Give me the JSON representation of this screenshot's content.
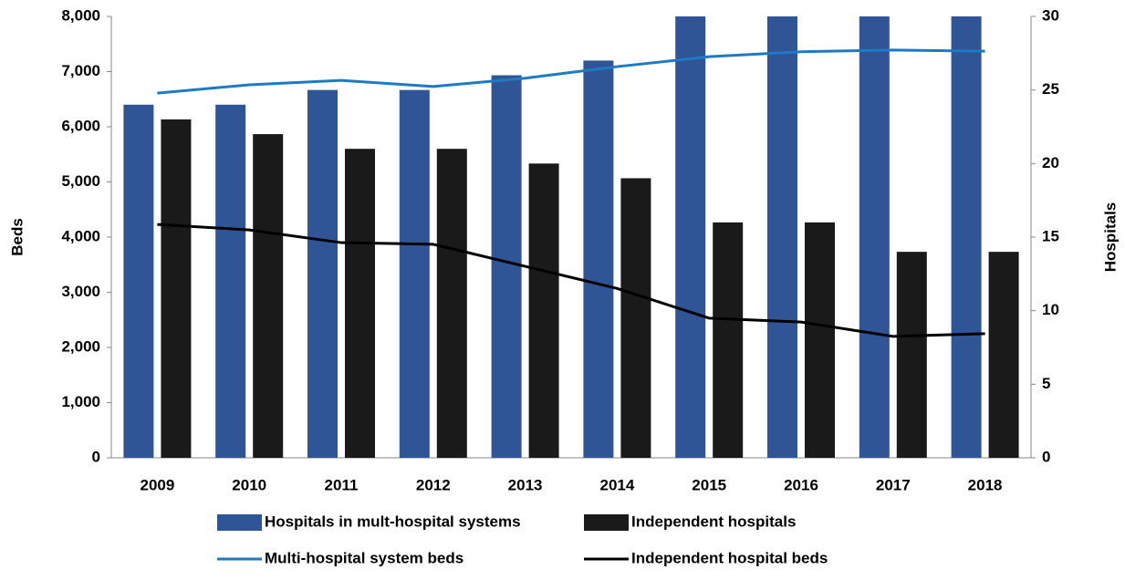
{
  "chart_data": {
    "type": "bar",
    "categories": [
      "2009",
      "2010",
      "2011",
      "2012",
      "2013",
      "2014",
      "2015",
      "2016",
      "2017",
      "2018"
    ],
    "ylabel": "Beds",
    "y2label": "Hospitals",
    "ylim": [
      0,
      8000
    ],
    "yticks": [
      0,
      {
        "value": 1000,
        "label": "1,000"
      },
      {
        "value": 2000,
        "label": "2,000"
      },
      {
        "value": 3000,
        "label": "3,000"
      },
      {
        "value": 4000,
        "label": "4,000"
      },
      {
        "value": 5000,
        "label": "5,000"
      },
      {
        "value": 6000,
        "label": "6,000"
      },
      {
        "value": 7000,
        "label": "7,000"
      },
      {
        "value": 8000,
        "label": "8,000"
      }
    ],
    "y2lim": [
      0,
      30
    ],
    "y2ticks": [
      0,
      5,
      10,
      15,
      20,
      25,
      30
    ],
    "grid": false,
    "series": [
      {
        "name": "Hospitals in mult-hospital systems",
        "type": "bar",
        "axis": "y2",
        "color": "#2f5597",
        "values": [
          24,
          24,
          25,
          25,
          26,
          27,
          30,
          30,
          30,
          30
        ]
      },
      {
        "name": "Independent hospitals",
        "type": "bar",
        "axis": "y2",
        "color": "#1a1a1a",
        "values": [
          23,
          22,
          21,
          21,
          20,
          19,
          16,
          16,
          14,
          14
        ]
      },
      {
        "name": "Multi-hospital system beds",
        "type": "line",
        "color": "#1f7ac4",
        "values": [
          6610,
          6760,
          6840,
          6730,
          6880,
          7090,
          7270,
          7360,
          7390,
          7370
        ]
      },
      {
        "name": "Independent hospital beds",
        "type": "line",
        "color": "#000000",
        "values": [
          4230,
          4130,
          3900,
          3870,
          3470,
          3070,
          2530,
          2460,
          2200,
          2250
        ]
      }
    ]
  }
}
